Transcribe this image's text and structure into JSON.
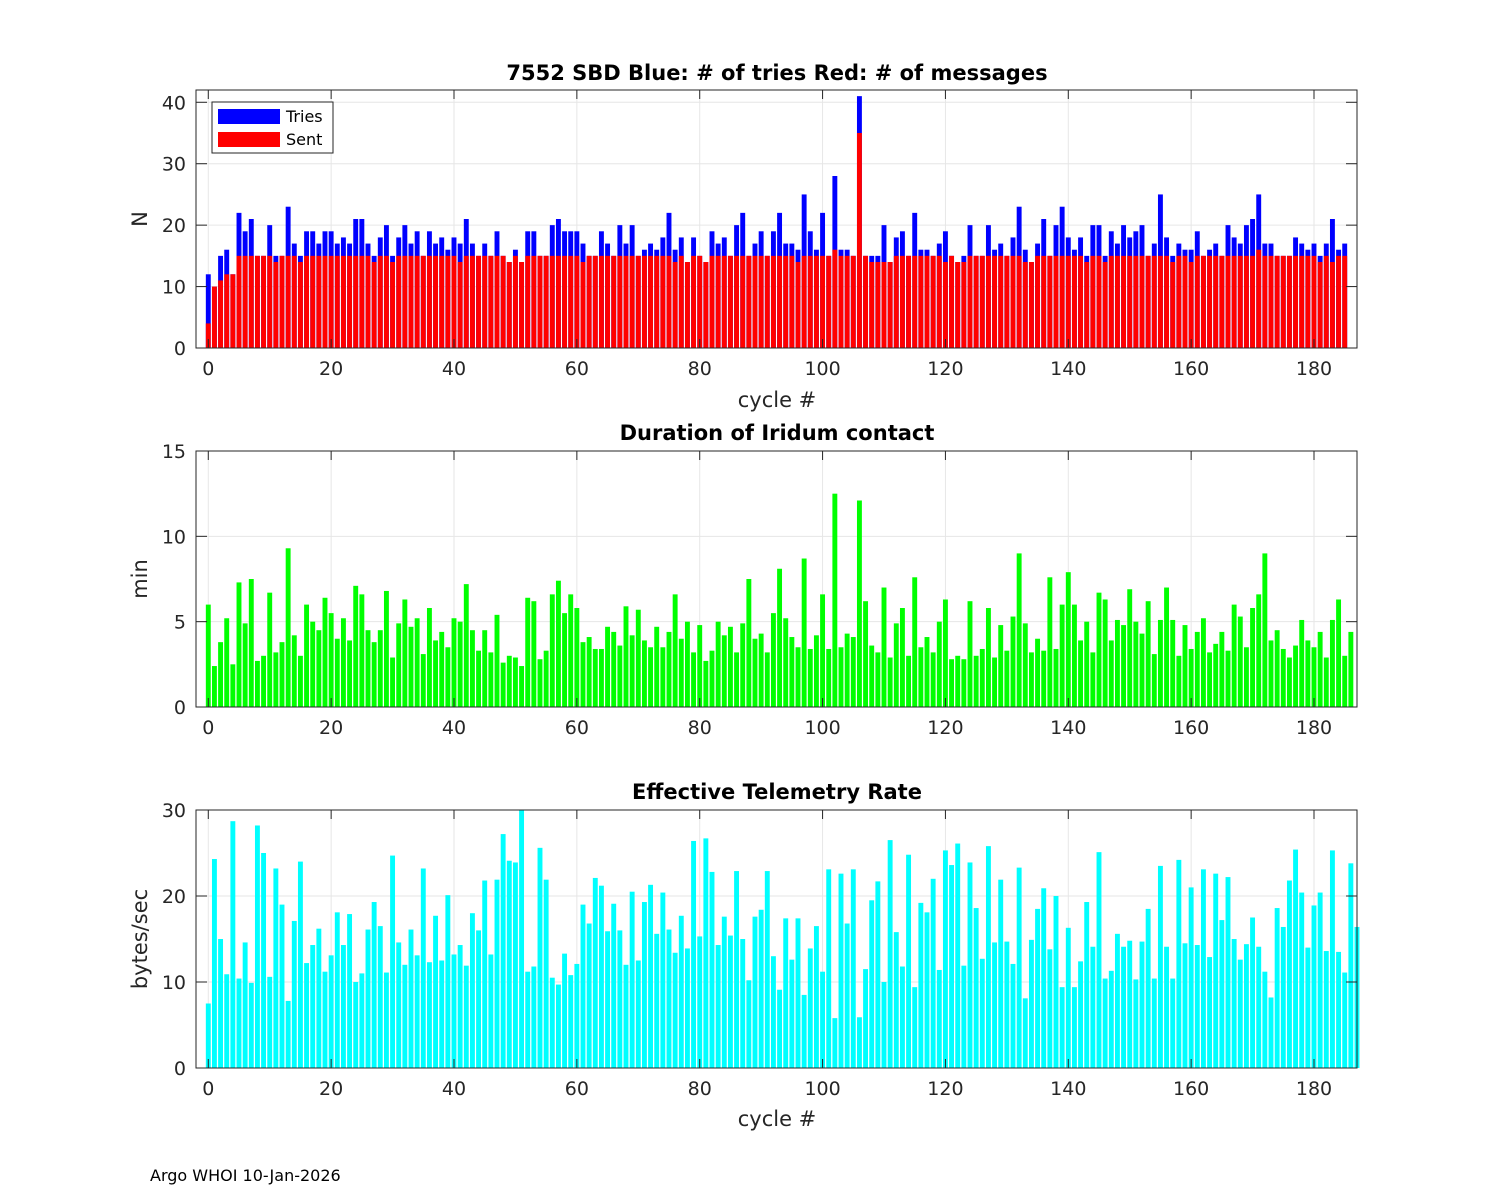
{
  "footer": "Argo WHOI 10-Jan-2026",
  "colors": {
    "tries": "#0000ff",
    "sent": "#ff0000",
    "duration": "#00ff00",
    "rate": "#00ffff",
    "grid": "#e6e6e6",
    "axis": "#262626"
  },
  "chart_data": [
    {
      "type": "bar",
      "title": "7552 SBD  Blue: # of tries   Red: # of messages",
      "xlabel": "cycle #",
      "ylabel": "N",
      "xlim": [
        -2,
        187
      ],
      "ylim": [
        0,
        42
      ],
      "xticks": [
        0,
        20,
        40,
        60,
        80,
        100,
        120,
        140,
        160,
        180
      ],
      "yticks": [
        0,
        10,
        20,
        30,
        40
      ],
      "grid": true,
      "legend": {
        "placement": "top-left",
        "entries": [
          "Tries",
          "Sent"
        ]
      },
      "x_start": 0,
      "series": [
        {
          "name": "Tries",
          "values": [
            12,
            10,
            15,
            16,
            12,
            22,
            19,
            21,
            15,
            15,
            20,
            15,
            15,
            23,
            17,
            15,
            19,
            19,
            17,
            19,
            19,
            17,
            18,
            17,
            21,
            21,
            17,
            15,
            18,
            20,
            15,
            18,
            20,
            17,
            19,
            15,
            19,
            17,
            18,
            16,
            18,
            17,
            21,
            17,
            15,
            17,
            15,
            19,
            15,
            14,
            16,
            14,
            19,
            19,
            15,
            15,
            20,
            21,
            19,
            19,
            19,
            17,
            15,
            15,
            19,
            17,
            15,
            20,
            17,
            20,
            15,
            16,
            17,
            16,
            18,
            22,
            16,
            18,
            14,
            18,
            15,
            14,
            19,
            17,
            18,
            15,
            20,
            22,
            15,
            17,
            19,
            15,
            19,
            22,
            17,
            17,
            16,
            25,
            19,
            16,
            22,
            15,
            28,
            16,
            16,
            15,
            41,
            15,
            15,
            15,
            20,
            14,
            18,
            19,
            15,
            22,
            16,
            16,
            15,
            17,
            19,
            15,
            14,
            15,
            20,
            15,
            15,
            20,
            16,
            17,
            15,
            18,
            23,
            16,
            14,
            17,
            21,
            15,
            20,
            23,
            18,
            16,
            18,
            15,
            20,
            20,
            15,
            19,
            17,
            20,
            18,
            19,
            20,
            15,
            17,
            25,
            18,
            15,
            17,
            16,
            16,
            19,
            15,
            16,
            17,
            15,
            20,
            18,
            17,
            20,
            21,
            25,
            17,
            17,
            15,
            15,
            15,
            18,
            17,
            16,
            17,
            15,
            17,
            21,
            16,
            17
          ]
        },
        {
          "name": "Sent",
          "values": [
            4,
            10,
            11,
            12,
            12,
            15,
            15,
            15,
            15,
            15,
            15,
            14,
            15,
            15,
            15,
            14,
            15,
            15,
            15,
            15,
            15,
            15,
            15,
            15,
            15,
            15,
            15,
            14,
            15,
            15,
            14,
            15,
            15,
            15,
            15,
            15,
            15,
            15,
            15,
            15,
            15,
            14,
            15,
            15,
            15,
            15,
            15,
            15,
            15,
            14,
            15,
            14,
            15,
            15,
            15,
            15,
            15,
            15,
            15,
            15,
            15,
            14,
            15,
            15,
            15,
            15,
            15,
            15,
            15,
            15,
            15,
            15,
            15,
            15,
            15,
            15,
            14,
            15,
            14,
            15,
            15,
            14,
            15,
            15,
            15,
            15,
            15,
            15,
            15,
            15,
            15,
            15,
            15,
            15,
            15,
            15,
            14,
            15,
            15,
            15,
            15,
            15,
            16,
            15,
            15,
            15,
            35,
            15,
            14,
            14,
            14,
            14,
            15,
            15,
            15,
            15,
            15,
            15,
            15,
            15,
            14,
            15,
            14,
            14,
            15,
            15,
            15,
            15,
            15,
            15,
            15,
            15,
            15,
            14,
            14,
            15,
            15,
            15,
            15,
            15,
            15,
            15,
            15,
            14,
            15,
            15,
            14,
            15,
            15,
            15,
            15,
            15,
            15,
            15,
            15,
            15,
            15,
            14,
            15,
            15,
            14,
            15,
            15,
            15,
            15,
            15,
            15,
            15,
            15,
            15,
            15,
            16,
            15,
            15,
            15,
            15,
            15,
            15,
            15,
            15,
            15,
            14,
            15,
            14,
            15,
            15
          ]
        }
      ]
    },
    {
      "type": "bar",
      "title": "Duration of Iridum contact",
      "xlabel": "",
      "ylabel": "min",
      "xlim": [
        -2,
        187
      ],
      "ylim": [
        0,
        15
      ],
      "xticks": [
        0,
        20,
        40,
        60,
        80,
        100,
        120,
        140,
        160,
        180
      ],
      "yticks": [
        0,
        5,
        10,
        15
      ],
      "grid": true,
      "x_start": 0,
      "series": [
        {
          "name": "Duration",
          "values": [
            6.0,
            2.4,
            3.8,
            5.2,
            2.5,
            7.3,
            4.9,
            7.5,
            2.7,
            3.0,
            6.7,
            3.2,
            3.8,
            9.3,
            4.2,
            3.0,
            6.0,
            5.0,
            4.5,
            6.4,
            5.5,
            4.0,
            5.2,
            3.9,
            7.1,
            6.6,
            4.5,
            3.8,
            4.5,
            6.8,
            2.9,
            4.9,
            6.3,
            4.7,
            5.2,
            3.1,
            5.8,
            3.9,
            4.4,
            3.5,
            5.2,
            5.0,
            7.2,
            4.5,
            3.3,
            4.5,
            3.2,
            5.4,
            2.6,
            3.0,
            2.9,
            2.4,
            6.4,
            6.2,
            2.8,
            3.3,
            6.6,
            7.4,
            5.5,
            6.6,
            5.8,
            3.8,
            4.1,
            3.4,
            3.4,
            4.7,
            4.4,
            3.6,
            5.9,
            4.2,
            5.7,
            3.9,
            3.5,
            4.7,
            3.5,
            4.4,
            6.6,
            4.0,
            5.0,
            3.2,
            4.8,
            2.7,
            3.3,
            5.0,
            4.2,
            4.7,
            3.2,
            4.9,
            7.5,
            4.0,
            4.3,
            3.2,
            5.5,
            8.1,
            5.2,
            4.1,
            3.5,
            8.7,
            3.4,
            4.2,
            6.6,
            3.4,
            12.5,
            3.5,
            4.3,
            4.1,
            12.1,
            6.2,
            3.6,
            3.2,
            7.0,
            2.9,
            4.9,
            5.8,
            3.0,
            7.6,
            3.5,
            4.1,
            3.2,
            5.0,
            6.3,
            2.8,
            3.0,
            2.8,
            6.2,
            3.0,
            3.4,
            5.8,
            2.9,
            4.8,
            3.3,
            5.3,
            9.0,
            4.9,
            3.2,
            4.0,
            3.3,
            7.6,
            3.4,
            6.0,
            7.9,
            6.0,
            3.9,
            5.0,
            3.2,
            6.7,
            6.3,
            3.9,
            5.1,
            4.8,
            6.9,
            5.0,
            4.3,
            6.2,
            3.1,
            5.1,
            7.0,
            5.1,
            3.0,
            4.8,
            3.4,
            4.4,
            5.2,
            3.2,
            3.7,
            4.4,
            3.3,
            6.0,
            5.3,
            3.5,
            5.8,
            6.6,
            9.0,
            3.9,
            4.5,
            3.4,
            2.9,
            3.6,
            5.1,
            3.9,
            3.5,
            4.4,
            2.9,
            5.1,
            6.3,
            3.0,
            4.4
          ]
        }
      ]
    },
    {
      "type": "bar",
      "title": "Effective Telemetry Rate",
      "xlabel": "cycle #",
      "ylabel": "bytes/sec",
      "xlim": [
        -2,
        187
      ],
      "ylim": [
        0,
        30
      ],
      "xticks": [
        0,
        20,
        40,
        60,
        80,
        100,
        120,
        140,
        160,
        180
      ],
      "yticks": [
        0,
        10,
        20,
        30
      ],
      "grid": true,
      "x_start": 0,
      "series": [
        {
          "name": "Rate",
          "values": [
            7.5,
            24.3,
            15.0,
            10.9,
            28.7,
            10.4,
            14.6,
            9.9,
            28.2,
            25.0,
            10.6,
            23.2,
            19.0,
            7.8,
            17.1,
            24.0,
            12.2,
            14.3,
            16.2,
            11.2,
            13.1,
            18.1,
            14.3,
            17.9,
            10.0,
            11.0,
            16.1,
            19.3,
            16.5,
            11.1,
            24.7,
            14.6,
            12.0,
            16.1,
            13.1,
            23.2,
            12.3,
            17.7,
            12.5,
            20.1,
            13.2,
            14.3,
            11.9,
            18.0,
            16.0,
            21.8,
            13.2,
            21.9,
            27.2,
            24.1,
            23.9,
            30.0,
            11.2,
            11.8,
            25.6,
            21.9,
            10.5,
            9.7,
            13.3,
            10.8,
            12.1,
            19.0,
            16.8,
            22.1,
            21.2,
            15.9,
            19.1,
            16.0,
            12.0,
            20.5,
            12.5,
            19.3,
            21.3,
            15.6,
            20.4,
            16.1,
            13.4,
            17.7,
            13.9,
            26.4,
            15.3,
            26.7,
            22.8,
            14.3,
            17.6,
            15.4,
            22.9,
            15.0,
            10.2,
            17.6,
            18.4,
            22.9,
            13.0,
            9.1,
            17.4,
            12.6,
            17.4,
            8.5,
            13.9,
            16.5,
            11.2,
            23.1,
            5.8,
            22.6,
            16.8,
            23.1,
            5.9,
            11.5,
            19.5,
            21.7,
            10.0,
            26.5,
            15.8,
            11.8,
            24.8,
            9.4,
            19.2,
            18.1,
            22.0,
            11.4,
            25.3,
            23.6,
            26.1,
            11.9,
            23.9,
            18.6,
            12.7,
            25.8,
            14.6,
            21.9,
            14.7,
            12.1,
            23.3,
            8.1,
            14.9,
            18.5,
            20.9,
            13.8,
            20.0,
            9.4,
            16.3,
            9.4,
            12.4,
            19.3,
            14.1,
            25.1,
            10.4,
            11.3,
            15.6,
            14.1,
            14.8,
            10.3,
            14.7,
            18.5,
            10.4,
            23.5,
            14.1,
            10.4,
            24.2,
            14.5,
            21.0,
            14.3,
            23.1,
            12.9,
            22.6,
            17.2,
            22.2,
            15.0,
            12.6,
            14.4,
            17.5,
            14.1,
            11.2,
            8.2,
            18.6,
            16.4,
            21.8,
            25.4,
            20.4,
            14.0,
            18.9,
            20.4,
            13.6,
            25.3,
            13.5,
            11.1,
            23.8,
            16.4
          ]
        }
      ]
    }
  ]
}
